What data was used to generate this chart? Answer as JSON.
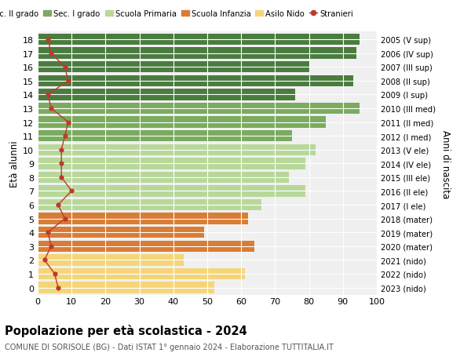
{
  "ages": [
    18,
    17,
    16,
    15,
    14,
    13,
    12,
    11,
    10,
    9,
    8,
    7,
    6,
    5,
    4,
    3,
    2,
    1,
    0
  ],
  "years": [
    "2005 (V sup)",
    "2006 (IV sup)",
    "2007 (III sup)",
    "2008 (II sup)",
    "2009 (I sup)",
    "2010 (III med)",
    "2011 (II med)",
    "2012 (I med)",
    "2013 (V ele)",
    "2014 (IV ele)",
    "2015 (III ele)",
    "2016 (II ele)",
    "2017 (I ele)",
    "2018 (mater)",
    "2019 (mater)",
    "2020 (mater)",
    "2021 (nido)",
    "2022 (nido)",
    "2023 (nido)"
  ],
  "bar_values": [
    95,
    94,
    80,
    93,
    76,
    95,
    85,
    75,
    82,
    79,
    74,
    79,
    66,
    62,
    49,
    64,
    43,
    61,
    52
  ],
  "bar_colors": [
    "#4a7c3f",
    "#4a7c3f",
    "#4a7c3f",
    "#4a7c3f",
    "#4a7c3f",
    "#7aab5e",
    "#7aab5e",
    "#7aab5e",
    "#b8d89a",
    "#b8d89a",
    "#b8d89a",
    "#b8d89a",
    "#b8d89a",
    "#d97c35",
    "#d97c35",
    "#d97c35",
    "#f5d57a",
    "#f5d57a",
    "#f5d57a"
  ],
  "stranieri_values": [
    3,
    4,
    8,
    9,
    3,
    4,
    9,
    8,
    7,
    7,
    7,
    10,
    6,
    8,
    3,
    4,
    2,
    5,
    6
  ],
  "legend_labels": [
    "Sec. II grado",
    "Sec. I grado",
    "Scuola Primaria",
    "Scuola Infanzia",
    "Asilo Nido",
    "Stranieri"
  ],
  "legend_colors": [
    "#4a7c3f",
    "#7aab5e",
    "#b8d89a",
    "#d97c35",
    "#f5d57a",
    "#c0392b"
  ],
  "stranieri_color": "#c0392b",
  "xlim": [
    0,
    100
  ],
  "ylabel_left": "Età alunni",
  "ylabel_right": "Anni di nascita",
  "title": "Popolazione per età scolastica - 2024",
  "subtitle": "COMUNE DI SORISOLE (BG) - Dati ISTAT 1° gennaio 2024 - Elaborazione TUTTITALIA.IT",
  "bg_color": "#ffffff",
  "bar_bg_color": "#f0f0f0",
  "xticks": [
    0,
    10,
    20,
    30,
    40,
    50,
    60,
    70,
    80,
    90,
    100
  ]
}
